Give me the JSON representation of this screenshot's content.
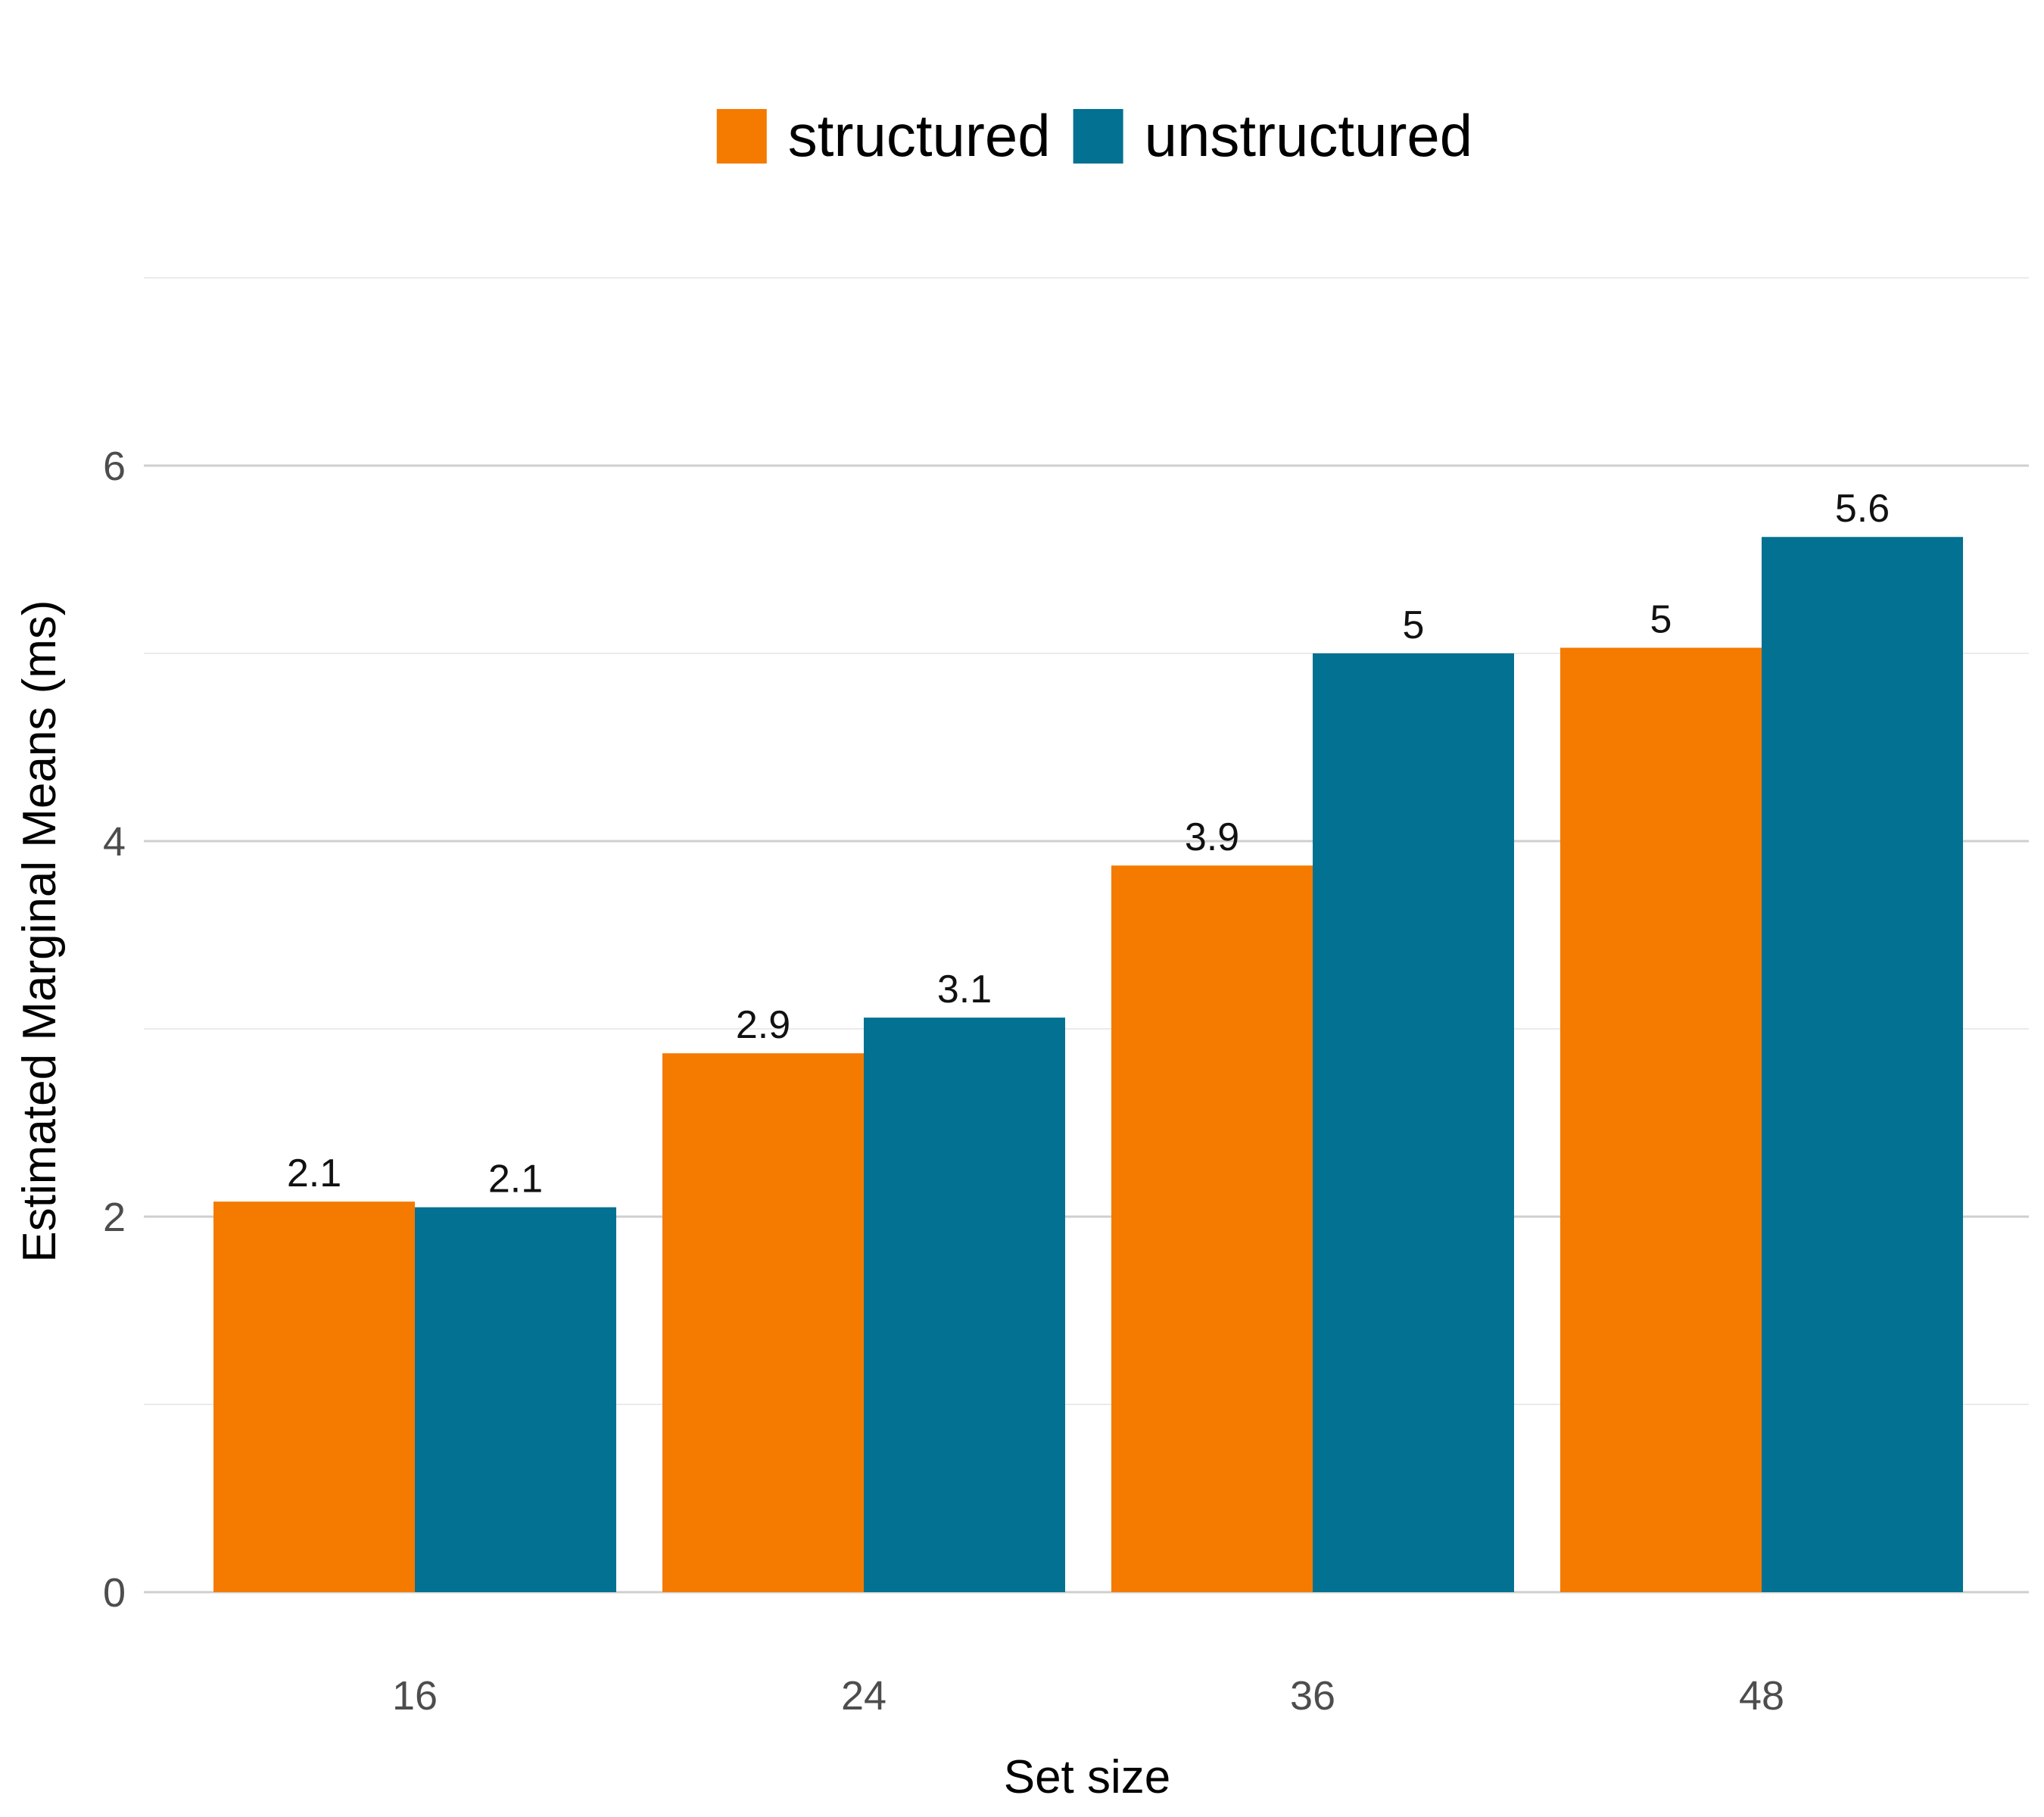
{
  "chart_data": {
    "type": "bar",
    "categories": [
      "16",
      "24",
      "36",
      "48"
    ],
    "series": [
      {
        "name": "structured",
        "color": "#F47A00",
        "values": [
          2.08,
          2.87,
          3.87,
          5.03
        ],
        "labels": [
          "2.1",
          "2.9",
          "3.9",
          "5"
        ]
      },
      {
        "name": "unstructured",
        "color": "#037191",
        "values": [
          2.05,
          3.06,
          5.0,
          5.62
        ],
        "labels": [
          "2.1",
          "3.1",
          "5",
          "5.6"
        ]
      }
    ],
    "xlabel": "Set size",
    "ylabel": "Estimated Marginal Means (ms)",
    "ylim": [
      0,
      7
    ],
    "yticks": [
      0,
      2,
      4,
      6
    ],
    "grid": true,
    "legend": "top"
  }
}
